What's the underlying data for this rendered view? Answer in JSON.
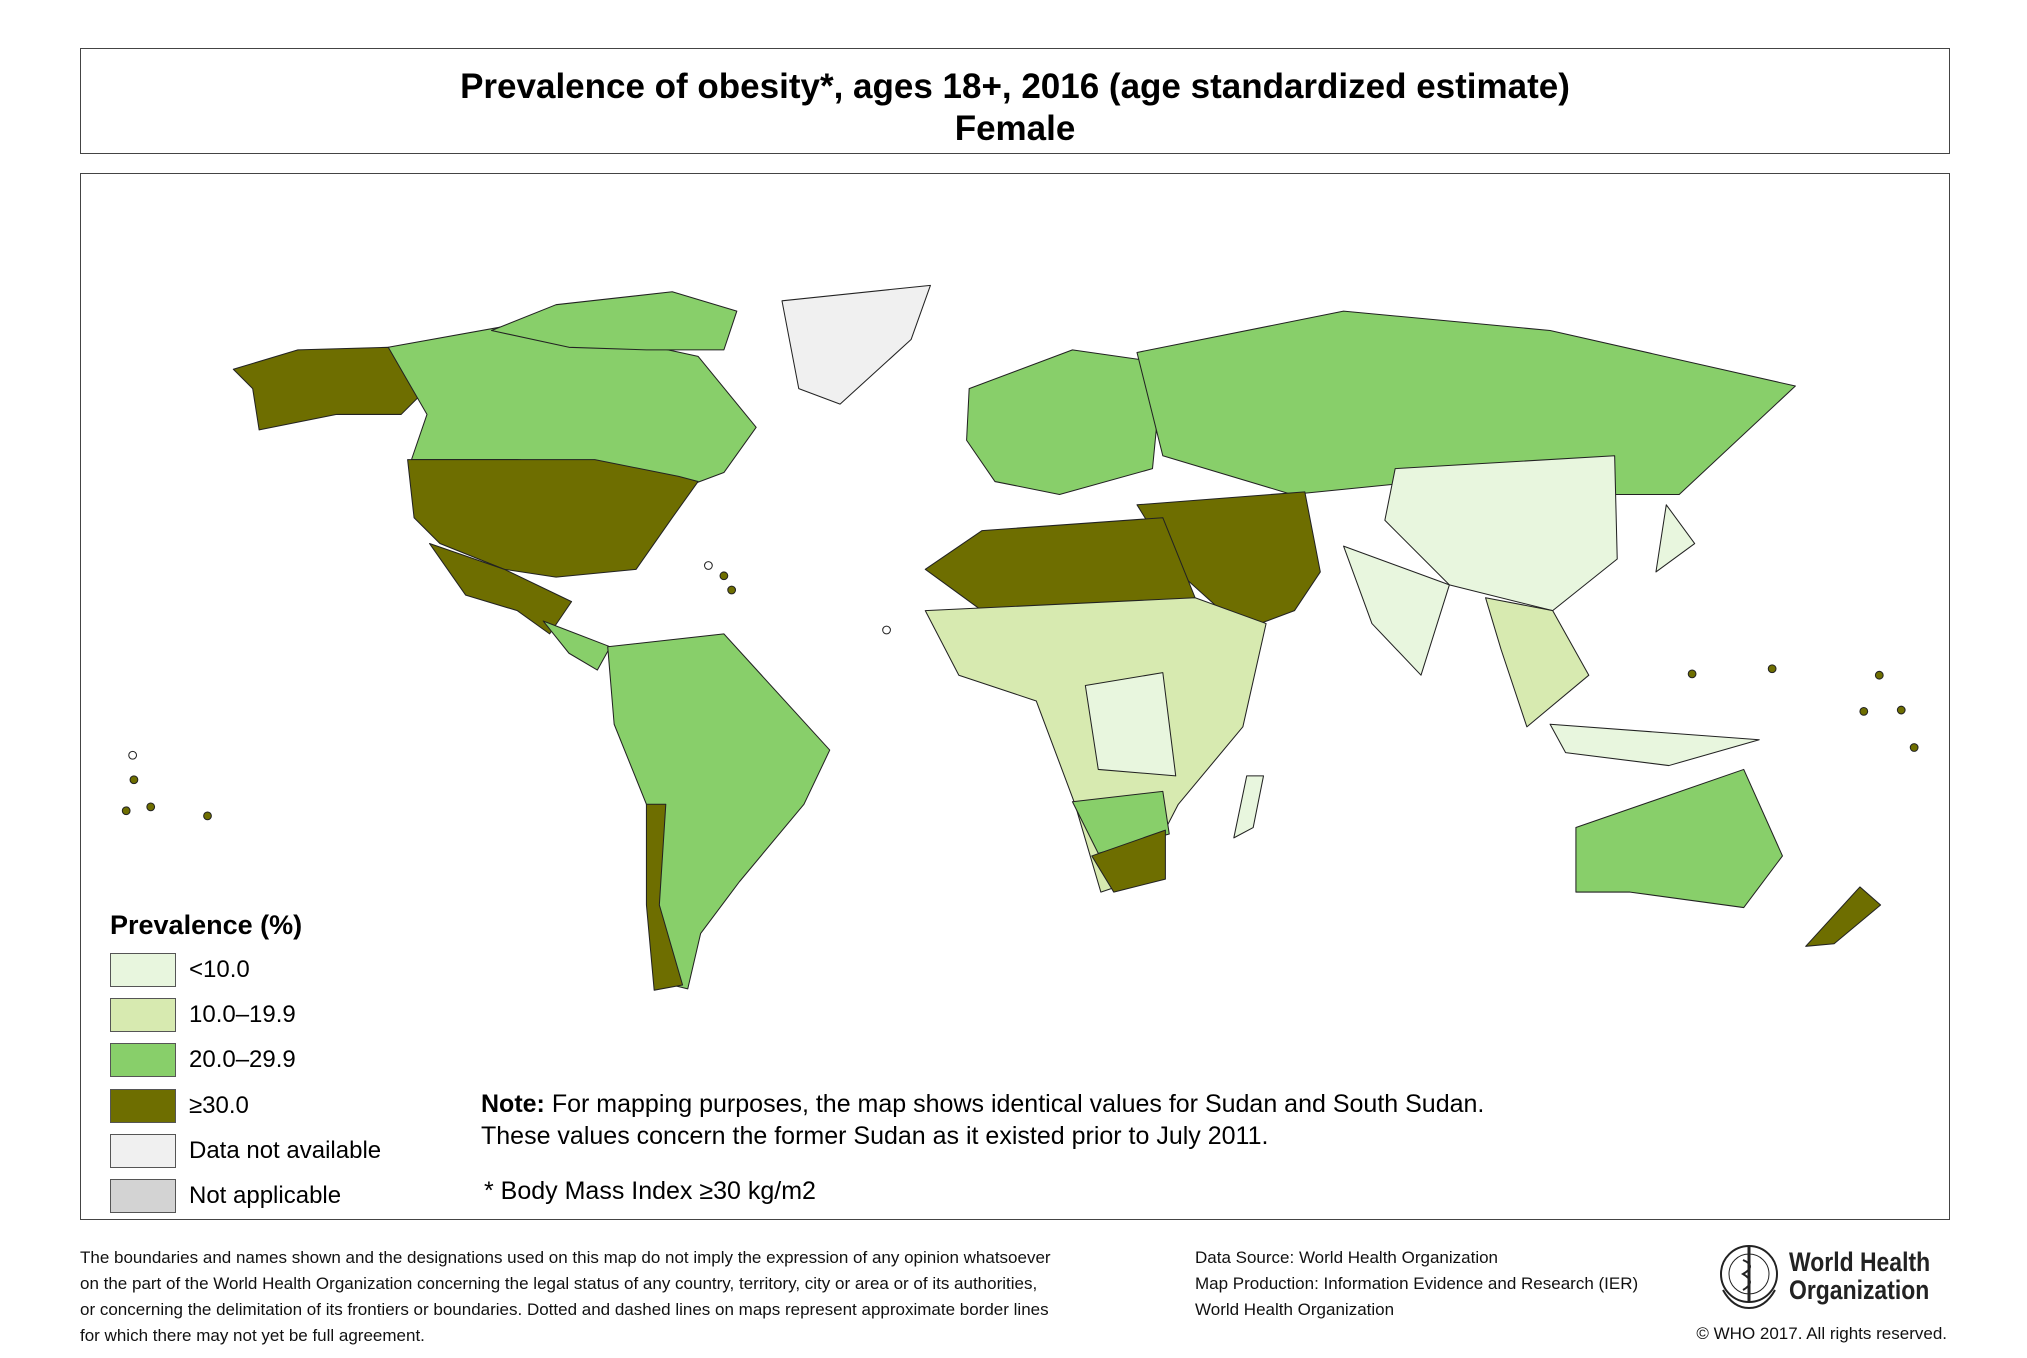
{
  "title": {
    "line1": "Prevalence of  obesity*, ages 18+, 2016 (age standardized estimate)",
    "line2": "Female"
  },
  "legend": {
    "title": "Prevalence (%)",
    "items": [
      {
        "label": "<10.0",
        "color": "#e8f6de"
      },
      {
        "label": "10.0–19.9",
        "color": "#d7eab0"
      },
      {
        "label": "20.0–29.9",
        "color": "#88cf6a"
      },
      {
        "label": "≥30.0",
        "color": "#6e6e00"
      },
      {
        "label": "Data not available",
        "color": "#f0f0f0"
      },
      {
        "label": "Not applicable",
        "color": "#d3d3d3"
      }
    ]
  },
  "note": {
    "bold": "Note:",
    "line1": " For mapping purposes, the map shows identical values for Sudan and South Sudan.",
    "line2": "These values concern the former Sudan as it existed prior to July 2011.",
    "footnote": "* Body Mass Index ≥30 kg/m2"
  },
  "footer": {
    "disclaimer": [
      "The boundaries and names shown and the designations used on this map do not imply the expression of any opinion whatsoever",
      "on the part of the World Health Organization concerning the legal status of any country, territory, city or area or of its authorities,",
      "or concerning the delimitation of its frontiers or boundaries. Dotted and dashed lines on maps represent approximate border lines",
      "for which there may not yet be full agreement."
    ],
    "credits": [
      "Data Source: World Health Organization",
      "Map Production: Information Evidence and Research (IER)",
      "World Health Organization"
    ],
    "logo_text": [
      "World Health",
      "Organization"
    ],
    "copyright": "© WHO 2017. All rights reserved."
  }
}
